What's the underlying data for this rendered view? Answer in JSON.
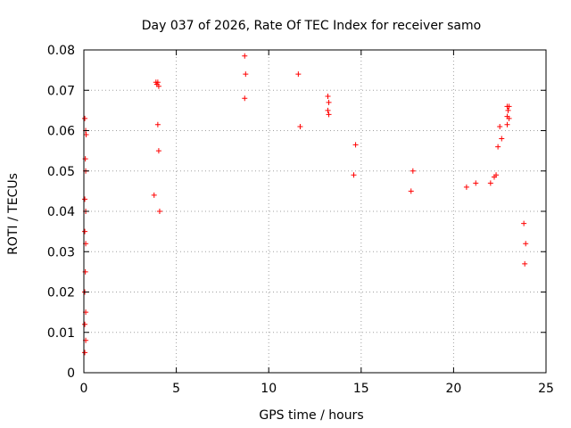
{
  "chart_data": {
    "type": "scatter",
    "title": "Day 037 of 2026, Rate Of TEC Index for receiver samo",
    "xlabel": "GPS time / hours",
    "ylabel": "ROTI / TECUs",
    "xlim": [
      0,
      25
    ],
    "ylim": [
      0,
      0.08
    ],
    "xticks": [
      0,
      5,
      10,
      15,
      20,
      25
    ],
    "yticks": [
      0,
      0.01,
      0.02,
      0.03,
      0.04,
      0.05,
      0.06,
      0.07,
      0.08
    ],
    "ytick_labels": [
      "0",
      "0.01",
      "0.02",
      "0.03",
      "0.04",
      "0.05",
      "0.06",
      "0.07",
      "0.08"
    ],
    "grid": true,
    "marker": "+",
    "marker_color": "#ff0000",
    "series": [
      {
        "points": [
          [
            0.05,
            0.063
          ],
          [
            0.1,
            0.06
          ],
          [
            0.12,
            0.059
          ],
          [
            0.08,
            0.053
          ],
          [
            0.1,
            0.05
          ],
          [
            0.05,
            0.043
          ],
          [
            0.1,
            0.04
          ],
          [
            0.05,
            0.035
          ],
          [
            0.1,
            0.032
          ],
          [
            0.08,
            0.025
          ],
          [
            0.05,
            0.02
          ],
          [
            0.1,
            0.015
          ],
          [
            0.05,
            0.012
          ],
          [
            0.1,
            0.008
          ],
          [
            0.05,
            0.005
          ],
          [
            3.9,
            0.072
          ],
          [
            4.0,
            0.072
          ],
          [
            4.05,
            0.071
          ],
          [
            3.95,
            0.0715
          ],
          [
            4.0,
            0.0615
          ],
          [
            4.05,
            0.055
          ],
          [
            3.8,
            0.044
          ],
          [
            4.1,
            0.04
          ],
          [
            8.7,
            0.0785
          ],
          [
            8.75,
            0.074
          ],
          [
            8.7,
            0.068
          ],
          [
            11.6,
            0.074
          ],
          [
            11.7,
            0.061
          ],
          [
            13.2,
            0.0685
          ],
          [
            13.25,
            0.067
          ],
          [
            13.2,
            0.065
          ],
          [
            13.25,
            0.064
          ],
          [
            14.7,
            0.0565
          ],
          [
            14.6,
            0.049
          ],
          [
            17.8,
            0.05
          ],
          [
            17.7,
            0.045
          ],
          [
            22.5,
            0.061
          ],
          [
            22.6,
            0.058
          ],
          [
            22.4,
            0.056
          ],
          [
            22.3,
            0.049
          ],
          [
            22.2,
            0.0485
          ],
          [
            22.9,
            0.066
          ],
          [
            23.0,
            0.066
          ],
          [
            22.95,
            0.065
          ],
          [
            22.9,
            0.0635
          ],
          [
            23.0,
            0.063
          ],
          [
            22.9,
            0.0615
          ],
          [
            21.2,
            0.047
          ],
          [
            22.0,
            0.047
          ],
          [
            20.7,
            0.046
          ],
          [
            23.8,
            0.037
          ],
          [
            23.9,
            0.032
          ],
          [
            23.85,
            0.027
          ]
        ]
      }
    ]
  }
}
